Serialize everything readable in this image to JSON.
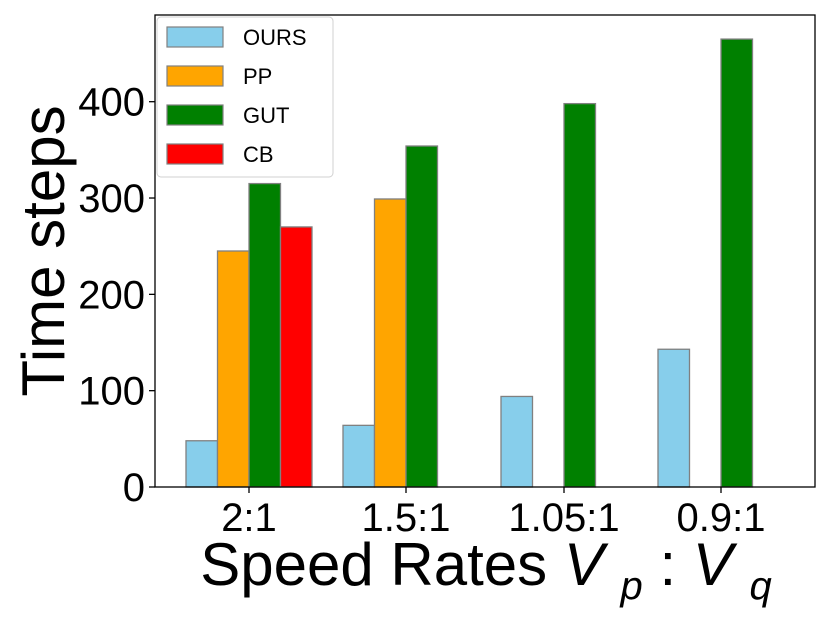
{
  "chart_data": {
    "type": "bar",
    "title": "",
    "xlabel": "Speed Rates",
    "xlabel_math": {
      "left_base": "V",
      "left_sub": "p",
      "separator": " : ",
      "right_base": "V",
      "right_sub": "q"
    },
    "ylabel": "Time steps",
    "categories": [
      "2:1",
      "1.5:1",
      "1.05:1",
      "0.9:1"
    ],
    "ylim": [
      0,
      490
    ],
    "yticks": [
      0,
      100,
      200,
      300,
      400
    ],
    "grid": false,
    "legend_position": "top-left",
    "series": [
      {
        "name": "OURS",
        "color": "#87ceeb",
        "values": [
          48,
          64,
          94,
          143
        ]
      },
      {
        "name": "PP",
        "color": "#ffa500",
        "values": [
          245,
          299,
          0,
          0
        ]
      },
      {
        "name": "GUT",
        "color": "#008000",
        "values": [
          315,
          354,
          398,
          465
        ]
      },
      {
        "name": "CB",
        "color": "#ff0000",
        "values": [
          270,
          0,
          0,
          0
        ]
      }
    ],
    "bar_edge_color": "#808080"
  }
}
